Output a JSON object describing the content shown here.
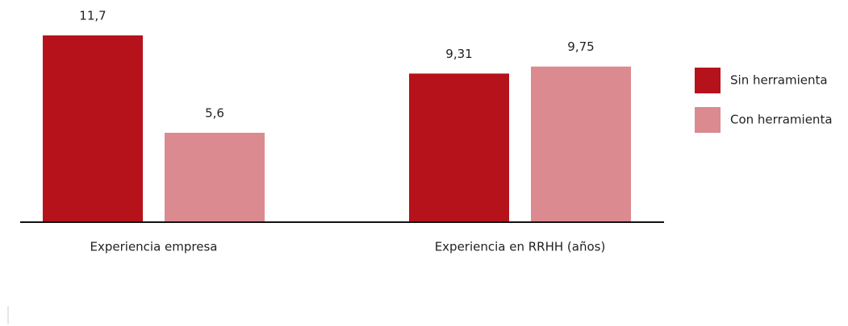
{
  "chart_data": {
    "type": "bar",
    "categories": [
      "Experiencia empresa",
      "Experiencia en RRHH (años)"
    ],
    "series": [
      {
        "name": "Sin herramienta",
        "color": "#b5121b",
        "values": [
          11.7,
          9.31
        ],
        "value_labels": [
          "11,7",
          "9,31"
        ]
      },
      {
        "name": "Con herramienta",
        "color": "#db8a8f",
        "values": [
          5.6,
          9.75
        ],
        "value_labels": [
          "5,6",
          "9,75"
        ]
      }
    ],
    "legend": "right"
  }
}
